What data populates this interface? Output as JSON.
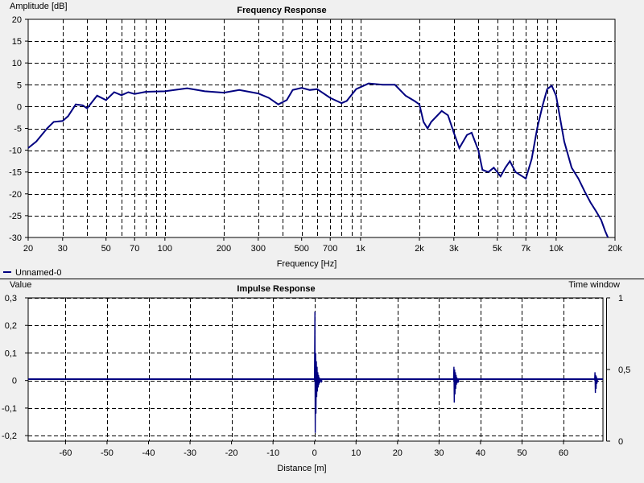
{
  "chart_data": [
    {
      "type": "line",
      "title": "Frequency Response",
      "ylabel": "Amplitude [dB]",
      "xlabel": "Frequency [Hz]",
      "xscale": "log",
      "xlim": [
        20,
        20000
      ],
      "ylim": [
        -30,
        20
      ],
      "grid": true,
      "legend_position": "bottom-left",
      "x_tick_labels": [
        "20",
        "30",
        "50",
        "70",
        "100",
        "200",
        "300",
        "500",
        "700",
        "1k",
        "2k",
        "3k",
        "5k",
        "7k",
        "10k",
        "20k"
      ],
      "x_tick_values": [
        20,
        30,
        50,
        70,
        100,
        200,
        300,
        500,
        700,
        1000,
        2000,
        3000,
        5000,
        7000,
        10000,
        20000
      ],
      "y_tick_labels": [
        "20",
        "15",
        "10",
        "5",
        "0",
        "-5",
        "-10",
        "-15",
        "-20",
        "-25",
        "-30"
      ],
      "y_tick_values": [
        20,
        15,
        10,
        5,
        0,
        -5,
        -10,
        -15,
        -20,
        -25,
        -30
      ],
      "series": [
        {
          "name": "Unnamed-0",
          "color": "#000080",
          "points": [
            [
              20,
              -9.5
            ],
            [
              22,
              -8
            ],
            [
              25,
              -5
            ],
            [
              27,
              -3.5
            ],
            [
              30,
              -3.3
            ],
            [
              32,
              -2.2
            ],
            [
              35,
              0.5
            ],
            [
              38,
              0.3
            ],
            [
              40,
              -0.4
            ],
            [
              42,
              0.8
            ],
            [
              45,
              2.5
            ],
            [
              50,
              1.5
            ],
            [
              55,
              3.3
            ],
            [
              60,
              2.6
            ],
            [
              65,
              3.3
            ],
            [
              70,
              2.9
            ],
            [
              80,
              3.4
            ],
            [
              100,
              3.5
            ],
            [
              130,
              4.2
            ],
            [
              160,
              3.5
            ],
            [
              200,
              3.2
            ],
            [
              240,
              3.8
            ],
            [
              300,
              3
            ],
            [
              340,
              2
            ],
            [
              380,
              0.5
            ],
            [
              420,
              1.5
            ],
            [
              450,
              3.8
            ],
            [
              500,
              4.3
            ],
            [
              550,
              3.8
            ],
            [
              600,
              4
            ],
            [
              700,
              2
            ],
            [
              800,
              0.8
            ],
            [
              850,
              1.3
            ],
            [
              950,
              4
            ],
            [
              1100,
              5.3
            ],
            [
              1300,
              5
            ],
            [
              1500,
              5
            ],
            [
              1700,
              2.5
            ],
            [
              1900,
              1.2
            ],
            [
              2000,
              0.5
            ],
            [
              2100,
              -3.5
            ],
            [
              2200,
              -5
            ],
            [
              2300,
              -3.5
            ],
            [
              2600,
              -1
            ],
            [
              2800,
              -2
            ],
            [
              3000,
              -6
            ],
            [
              3200,
              -9.5
            ],
            [
              3500,
              -6.5
            ],
            [
              3700,
              -6
            ],
            [
              4000,
              -10
            ],
            [
              4200,
              -14.5
            ],
            [
              4500,
              -15
            ],
            [
              4800,
              -14
            ],
            [
              5200,
              -16
            ],
            [
              5500,
              -14
            ],
            [
              5800,
              -12.5
            ],
            [
              6200,
              -15
            ],
            [
              7000,
              -16.5
            ],
            [
              7500,
              -12
            ],
            [
              8000,
              -5
            ],
            [
              8500,
              0
            ],
            [
              9000,
              4
            ],
            [
              9500,
              4.8
            ],
            [
              10000,
              2.5
            ],
            [
              11000,
              -8
            ],
            [
              12000,
              -14
            ],
            [
              13000,
              -16.5
            ],
            [
              14000,
              -19.5
            ],
            [
              15000,
              -22
            ],
            [
              16000,
              -24
            ],
            [
              17000,
              -26
            ],
            [
              17800,
              -28.5
            ],
            [
              18400,
              -30
            ]
          ]
        }
      ]
    },
    {
      "type": "line",
      "title": "Impulse Response",
      "ylabel": "Value",
      "ylabel_right": "Time window",
      "xlabel": "Distance [m]",
      "xlim": [
        -69,
        69.5
      ],
      "ylim": [
        -0.22,
        0.3
      ],
      "ylim_right": [
        0,
        1
      ],
      "grid": true,
      "x_tick_labels": [
        "-60",
        "-50",
        "-40",
        "-30",
        "-20",
        "-10",
        "0",
        "10",
        "20",
        "30",
        "40",
        "50",
        "60"
      ],
      "x_tick_values": [
        -60,
        -50,
        -40,
        -30,
        -20,
        -10,
        0,
        10,
        20,
        30,
        40,
        50,
        60
      ],
      "y_tick_labels": [
        "0,3",
        "0,2",
        "0,1",
        "0",
        "-0,1",
        "-0,2"
      ],
      "y_tick_values": [
        0.3,
        0.2,
        0.1,
        0,
        -0.1,
        -0.2
      ],
      "y_right_tick_labels": [
        "1",
        "0,5",
        "0"
      ],
      "y_right_tick_values": [
        1,
        0.5,
        0
      ],
      "series": [
        {
          "name": "Unnamed-0",
          "color": "#000080",
          "impulses": [
            {
              "x": 0,
              "amplitudes": [
                0.25,
                -0.19,
                0.1,
                -0.12,
                0.07,
                -0.06,
                0.05,
                -0.04,
                0.03,
                -0.025,
                0.02,
                -0.015,
                0.012,
                -0.01,
                0.008,
                -0.006,
                0.005,
                -0.004,
                0.004,
                -0.003
              ]
            },
            {
              "x": 33.5,
              "amplitudes": [
                0.05,
                -0.08,
                0.04,
                -0.05,
                0.03,
                -0.03,
                0.02,
                -0.015,
                0.012,
                -0.01,
                0.008,
                -0.006,
                0.004,
                -0.003
              ]
            },
            {
              "x": 67.5,
              "amplitudes": [
                0.03,
                -0.045,
                0.02,
                -0.03,
                0.015,
                -0.012,
                0.008,
                -0.006
              ]
            }
          ]
        }
      ]
    }
  ]
}
